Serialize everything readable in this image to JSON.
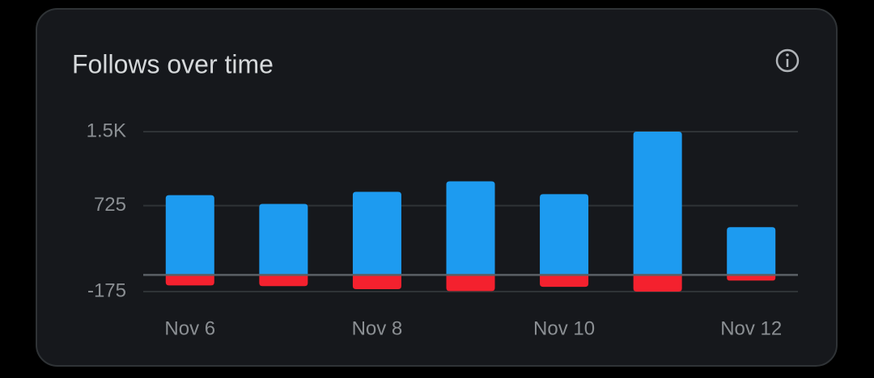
{
  "chart_data": {
    "type": "bar",
    "stacked": true,
    "title": "Follows over time",
    "categories": [
      "Nov 6",
      null,
      "Nov 8",
      null,
      "Nov 10",
      null,
      "Nov 12"
    ],
    "series": [
      {
        "color": "#1d9bf0",
        "values": [
          835,
          743,
          870,
          980,
          845,
          1500,
          500
        ]
      },
      {
        "color": "#f4212e",
        "values": [
          -110,
          -118,
          -150,
          -170,
          -125,
          -175,
          -60
        ]
      }
    ],
    "ylim": [
      -175,
      1500
    ],
    "yticks": [
      {
        "value": 1500,
        "label": "1.5K"
      },
      725,
      -175
    ],
    "grid": true
  }
}
